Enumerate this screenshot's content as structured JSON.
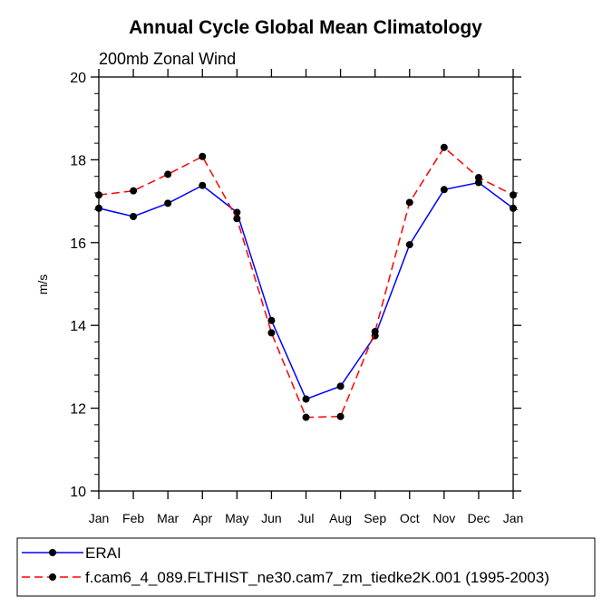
{
  "chart_data": {
    "type": "line",
    "title": "Annual Cycle Global Mean Climatology",
    "subtitle": "200mb Zonal Wind",
    "xlabel": "",
    "ylabel": "m/s",
    "categories": [
      "Jan",
      "Feb",
      "Mar",
      "Apr",
      "May",
      "Jun",
      "Jul",
      "Aug",
      "Sep",
      "Oct",
      "Nov",
      "Dec",
      "Jan"
    ],
    "ylim": [
      10,
      20
    ],
    "yticks": [
      10,
      12,
      14,
      16,
      18,
      20
    ],
    "grid": false,
    "legend_position": "bottom",
    "series": [
      {
        "name": "ERAI",
        "color": "#0000ff",
        "line_style": "solid",
        "marker": "dot",
        "values": [
          16.83,
          16.63,
          16.95,
          17.38,
          16.73,
          14.12,
          12.22,
          12.53,
          13.75,
          15.95,
          17.28,
          17.45,
          16.83
        ]
      },
      {
        "name": "f.cam6_4_089.FLTHIST_ne30.cam7_zm_tiedke2K.001 (1995-2003)",
        "color": "#ff0000",
        "line_style": "dashed",
        "marker": "dot",
        "values": [
          17.15,
          17.25,
          17.65,
          18.08,
          16.58,
          13.82,
          11.78,
          11.8,
          13.85,
          16.97,
          18.3,
          17.57,
          17.15
        ]
      }
    ]
  }
}
